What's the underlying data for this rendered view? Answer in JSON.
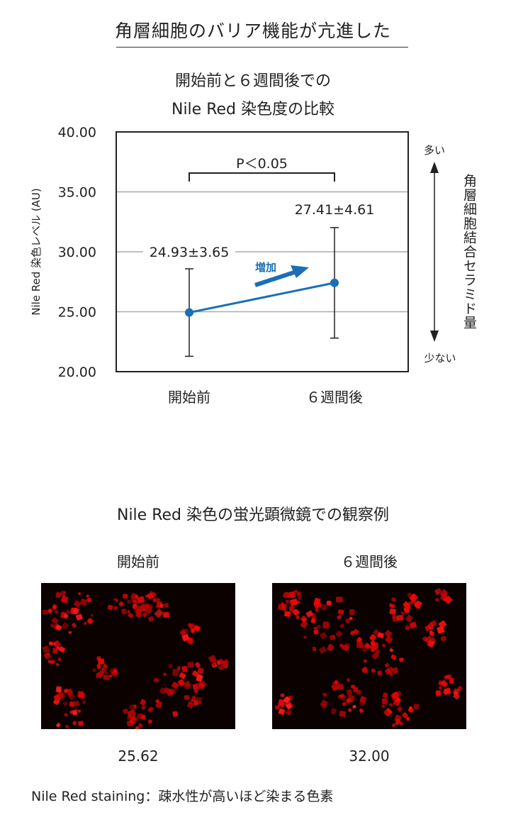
{
  "headline": "角層細胞のバリア機能が亢進した",
  "chart_data": {
    "type": "line",
    "title_lines": [
      "開始前と６週間後での",
      "Nile Red 染色度の比較"
    ],
    "ylabel": "Nile Red 染色レベル (AU)",
    "ylim": [
      20,
      40
    ],
    "yticks": [
      "20.00",
      "25.00",
      "30.00",
      "35.00",
      "40.00"
    ],
    "ytick_values": [
      20,
      25,
      30,
      35,
      40
    ],
    "grid": true,
    "categories": [
      "開始前",
      "６週間後"
    ],
    "series": [
      {
        "mean": [
          24.93,
          27.41
        ],
        "sd": [
          3.65,
          4.61
        ],
        "value_labels": [
          "24.93±3.65",
          "27.41±4.61"
        ]
      }
    ],
    "significance": "P＜0.05",
    "arrow_label": "増加",
    "right_axis": {
      "top": "多い",
      "bottom": "少ない",
      "label": "角層細胞結合セラミド量"
    },
    "colors": {
      "series": "#1a6fb5",
      "grid": "#aaaaaa",
      "frame": "#222222"
    }
  },
  "microscopy": {
    "title": "Nile Red 染色の蛍光顕微鏡での観察例",
    "panels": [
      {
        "label": "開始前",
        "value": "25.62"
      },
      {
        "label": "６週間後",
        "value": "32.00"
      }
    ]
  },
  "footnote": "Nile Red staining：疎水性が高いほど染まる色素"
}
